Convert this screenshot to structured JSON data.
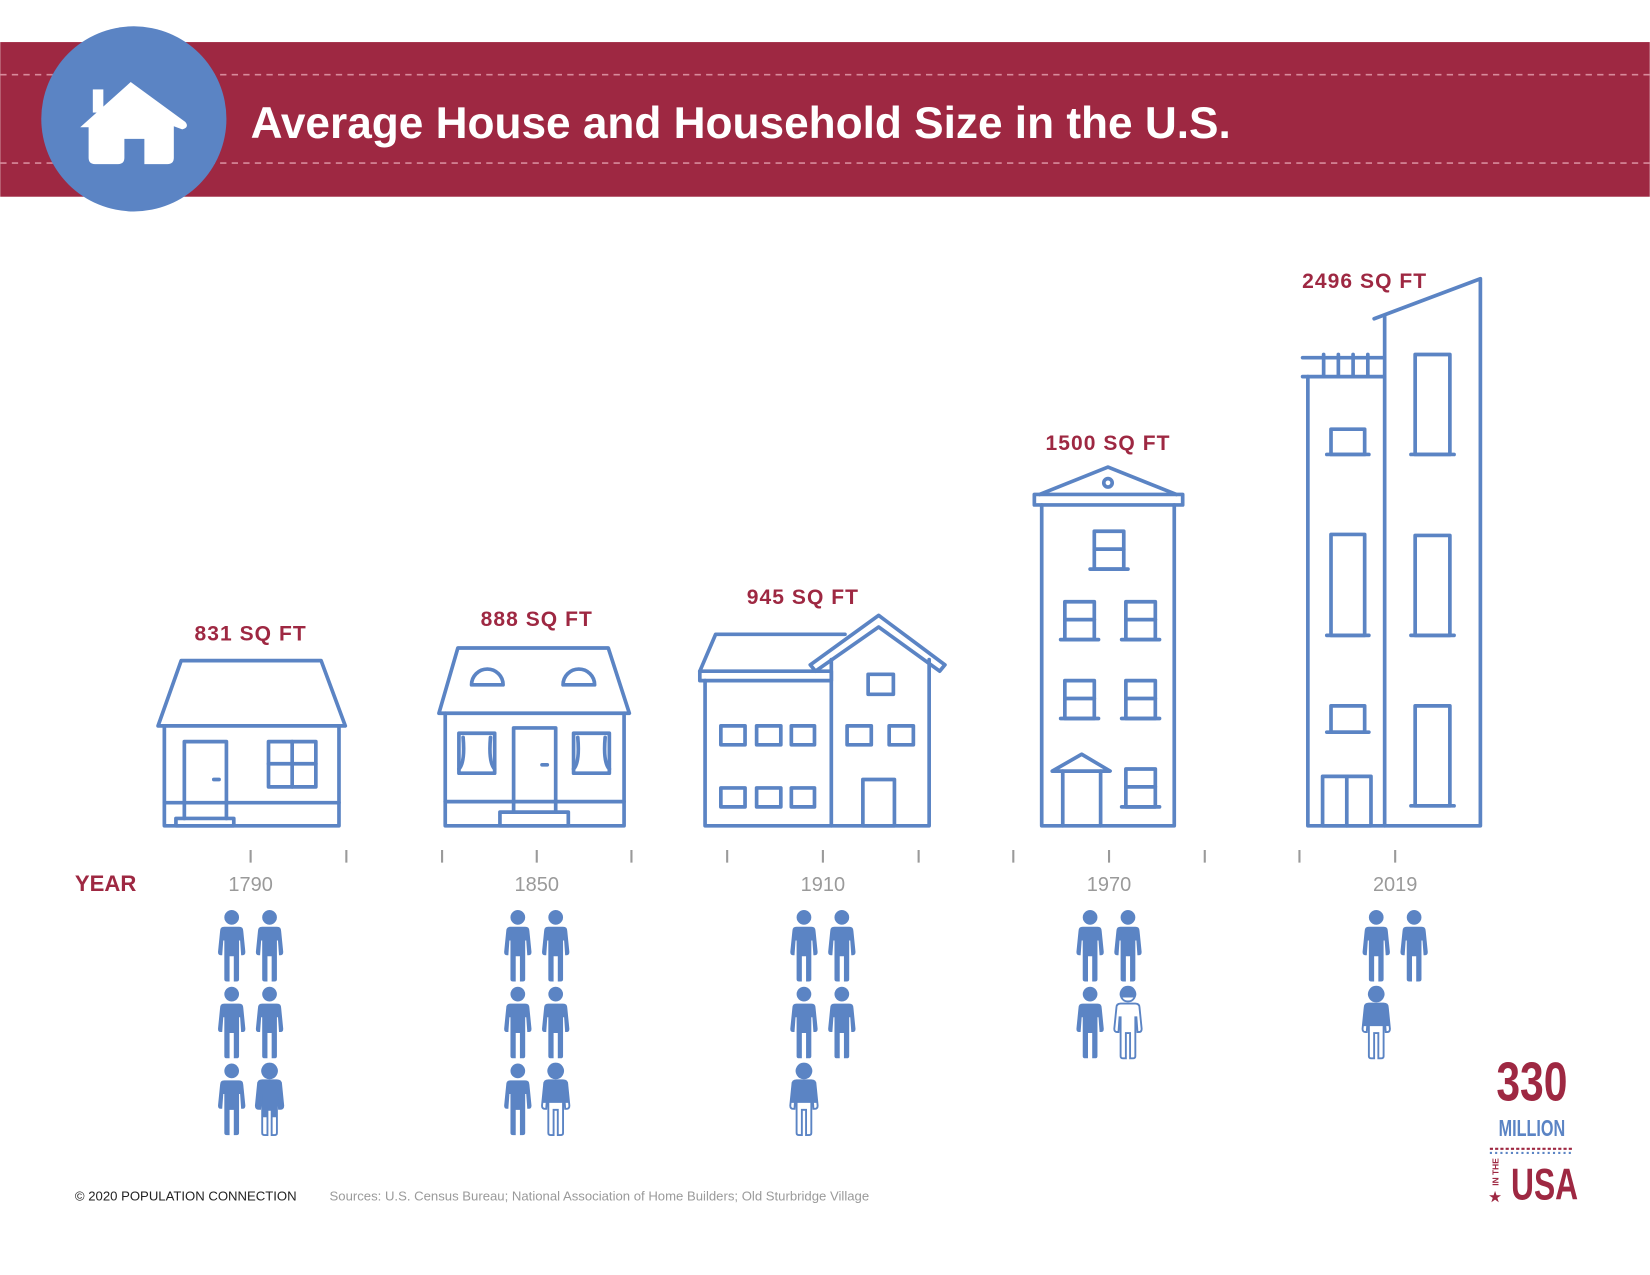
{
  "title": "Average House and Household Size in the U.S.",
  "year_label": "YEAR",
  "colors": {
    "brand_red": "#9e2842",
    "accent_blue": "#5b84c4",
    "year_gray": "#9a9a9a"
  },
  "entries": [
    {
      "year": "1790",
      "sqft": "831 SQ FT",
      "household_size": 5.75
    },
    {
      "year": "1850",
      "sqft": "888 SQ FT",
      "household_size": 5.55
    },
    {
      "year": "1910",
      "sqft": "945 SQ FT",
      "household_size": 4.55
    },
    {
      "year": "1970",
      "sqft": "1500 SQ FT",
      "household_size": 3.15
    },
    {
      "year": "2019",
      "sqft": "2496 SQ FT",
      "household_size": 2.55
    }
  ],
  "footer": {
    "copyright": "© 2020 POPULATION CONNECTION",
    "sources": "Sources: U.S. Census Bureau; National Association of Home Builders; Old Sturbridge Village"
  },
  "logo": {
    "line1": "330",
    "line2": "MILLION",
    "line3": "IN THE",
    "line4": "USA"
  }
}
